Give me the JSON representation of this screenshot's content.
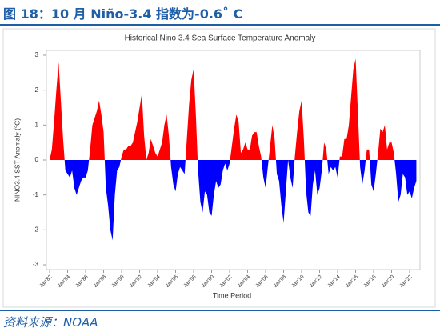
{
  "figure_title": "图 18：10 月 Niño-3.4 指数为-0.6˚ C",
  "source": "资料来源：NOAA",
  "chart_data": {
    "type": "area",
    "title": "Historical Nino 3.4 Sea Surface Temperature Anomaly",
    "x_label": "Time Period",
    "y_label": "NINO3.4 SST Anomaly (°C)",
    "color_positive": "#ff0000",
    "color_negative": "#0000ff",
    "xlim": [
      1982,
      2022.8
    ],
    "xticks": [
      {
        "value": 1982,
        "label": "Jan'82"
      },
      {
        "value": 1984,
        "label": "Jan'84"
      },
      {
        "value": 1986,
        "label": "Jan'86"
      },
      {
        "value": 1988,
        "label": "Jan'88"
      },
      {
        "value": 1990,
        "label": "Jan'90"
      },
      {
        "value": 1992,
        "label": "Jan'92"
      },
      {
        "value": 1994,
        "label": "Jan'94"
      },
      {
        "value": 1996,
        "label": "Jan'96"
      },
      {
        "value": 1998,
        "label": "Jan'98"
      },
      {
        "value": 2000,
        "label": "Jan'00"
      },
      {
        "value": 2002,
        "label": "Jan'02"
      },
      {
        "value": 2004,
        "label": "Jan'04"
      },
      {
        "value": 2006,
        "label": "Jan'06"
      },
      {
        "value": 2008,
        "label": "Jan'08"
      },
      {
        "value": 2010,
        "label": "Jan'10"
      },
      {
        "value": 2012,
        "label": "Jan'12"
      },
      {
        "value": 2014,
        "label": "Jan'14"
      },
      {
        "value": 2016,
        "label": "Jan'16"
      },
      {
        "value": 2018,
        "label": "Jan'18"
      },
      {
        "value": 2020,
        "label": "Jan'20"
      },
      {
        "value": 2022,
        "label": "Jan'22"
      }
    ],
    "ylim": [
      -3,
      3
    ],
    "yticks": [
      -3,
      -2,
      -1,
      0,
      1,
      2,
      3
    ],
    "x": [
      1982,
      1982.25,
      1982.5,
      1982.75,
      1983,
      1983.25,
      1983.5,
      1983.75,
      1984,
      1984.25,
      1984.5,
      1984.75,
      1985,
      1985.25,
      1985.5,
      1985.75,
      1986,
      1986.25,
      1986.5,
      1986.75,
      1987,
      1987.25,
      1987.5,
      1987.75,
      1988,
      1988.25,
      1988.5,
      1988.75,
      1989,
      1989.25,
      1989.5,
      1989.75,
      1990,
      1990.25,
      1990.5,
      1990.75,
      1991,
      1991.25,
      1991.5,
      1991.75,
      1992,
      1992.25,
      1992.5,
      1992.75,
      1993,
      1993.25,
      1993.5,
      1993.75,
      1994,
      1994.25,
      1994.5,
      1994.75,
      1995,
      1995.25,
      1995.5,
      1995.75,
      1996,
      1996.25,
      1996.5,
      1996.75,
      1997,
      1997.25,
      1997.5,
      1997.75,
      1998,
      1998.25,
      1998.5,
      1998.75,
      1999,
      1999.25,
      1999.5,
      1999.75,
      2000,
      2000.25,
      2000.5,
      2000.75,
      2001,
      2001.25,
      2001.5,
      2001.75,
      2002,
      2002.25,
      2002.5,
      2002.75,
      2003,
      2003.25,
      2003.5,
      2003.75,
      2004,
      2004.25,
      2004.5,
      2004.75,
      2005,
      2005.25,
      2005.5,
      2005.75,
      2006,
      2006.25,
      2006.5,
      2006.75,
      2007,
      2007.25,
      2007.5,
      2007.75,
      2008,
      2008.25,
      2008.5,
      2008.75,
      2009,
      2009.25,
      2009.5,
      2009.75,
      2010,
      2010.25,
      2010.5,
      2010.75,
      2011,
      2011.25,
      2011.5,
      2011.75,
      2012,
      2012.25,
      2012.5,
      2012.75,
      2013,
      2013.25,
      2013.5,
      2013.75,
      2014,
      2014.25,
      2014.5,
      2014.75,
      2015,
      2015.25,
      2015.5,
      2015.75,
      2016,
      2016.25,
      2016.5,
      2016.75,
      2017,
      2017.25,
      2017.5,
      2017.75,
      2018,
      2018.25,
      2018.5,
      2018.75,
      2019,
      2019.25,
      2019.5,
      2019.75,
      2020,
      2020.25,
      2020.5,
      2020.75,
      2021,
      2021.25,
      2021.5,
      2021.75,
      2022,
      2022.25,
      2022.5,
      2022.75
    ],
    "values": [
      0.0,
      0.3,
      1.1,
      2.0,
      2.8,
      1.7,
      0.6,
      -0.3,
      -0.4,
      -0.5,
      -0.3,
      -0.8,
      -1.0,
      -0.8,
      -0.6,
      -0.5,
      -0.5,
      -0.3,
      0.3,
      1.0,
      1.2,
      1.4,
      1.7,
      1.3,
      0.8,
      -0.8,
      -1.3,
      -2.0,
      -2.3,
      -1.0,
      -0.3,
      -0.2,
      0.1,
      0.3,
      0.3,
      0.4,
      0.4,
      0.5,
      0.8,
      1.1,
      1.5,
      1.9,
      0.7,
      0.0,
      0.2,
      0.6,
      0.4,
      0.2,
      0.1,
      0.3,
      0.5,
      1.0,
      1.3,
      0.7,
      -0.2,
      -0.7,
      -0.9,
      -0.4,
      -0.2,
      -0.3,
      -0.4,
      0.6,
      1.6,
      2.3,
      2.6,
      1.3,
      -0.3,
      -1.2,
      -1.5,
      -0.9,
      -1.0,
      -1.5,
      -1.6,
      -1.0,
      -0.6,
      -0.8,
      -0.7,
      -0.3,
      -0.1,
      -0.3,
      -0.1,
      0.4,
      0.9,
      1.3,
      1.1,
      0.2,
      0.3,
      0.5,
      0.3,
      0.3,
      0.7,
      0.8,
      0.8,
      0.4,
      0.1,
      -0.5,
      -0.8,
      -0.2,
      0.4,
      1.0,
      0.6,
      -0.4,
      -0.6,
      -1.3,
      -1.8,
      -0.9,
      0.0,
      -0.5,
      -0.8,
      0.1,
      0.8,
      1.4,
      1.7,
      0.6,
      -0.9,
      -1.5,
      -1.6,
      -0.7,
      -0.3,
      -1.0,
      -0.8,
      -0.3,
      0.5,
      0.3,
      -0.4,
      -0.2,
      -0.3,
      -0.2,
      -0.5,
      0.1,
      0.1,
      0.6,
      0.6,
      1.0,
      1.8,
      2.6,
      2.9,
      1.4,
      -0.2,
      -0.7,
      -0.3,
      0.3,
      0.3,
      -0.7,
      -0.9,
      -0.4,
      0.2,
      0.9,
      0.8,
      1.0,
      0.3,
      0.5,
      0.5,
      0.2,
      -0.4,
      -1.2,
      -1.0,
      -0.4,
      -0.5,
      -1.0,
      -0.9,
      -1.1,
      -0.8,
      -0.6
    ]
  }
}
